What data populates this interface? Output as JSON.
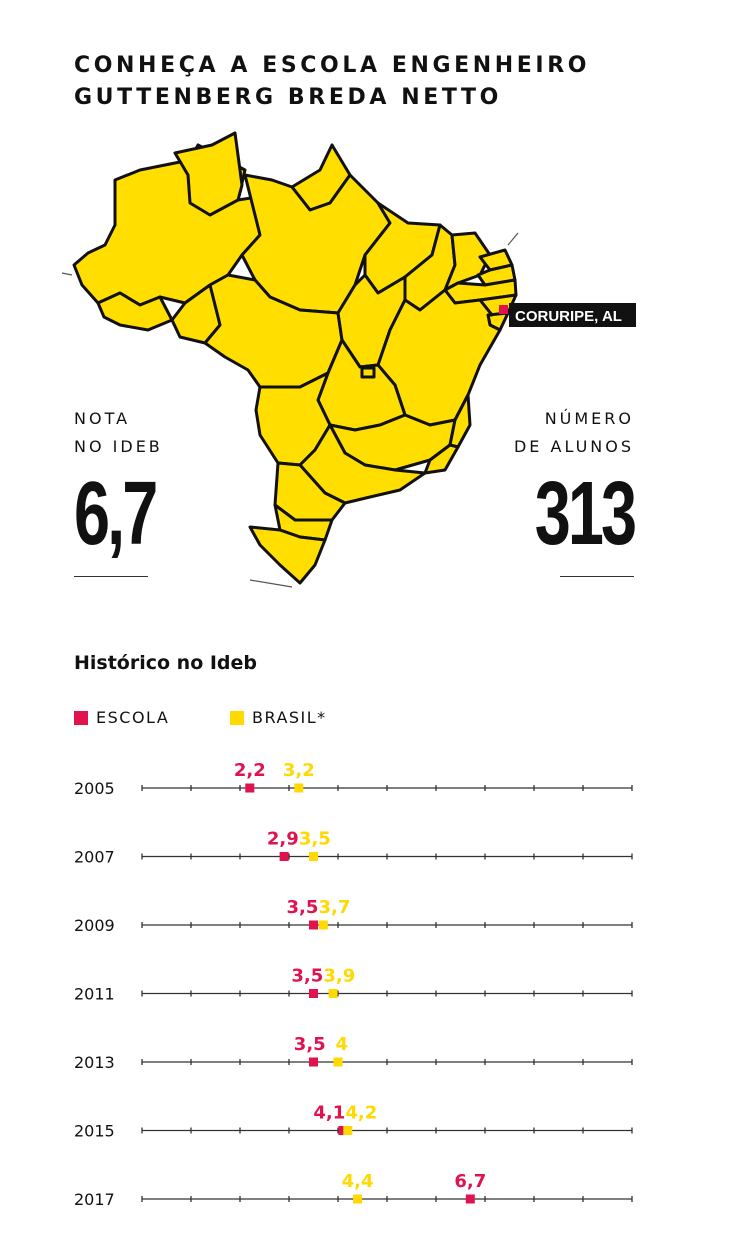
{
  "title": {
    "line1": "CONHEÇA A ESCOLA ENGENHEIRO",
    "line2": "GUTTENBERG BREDA NETTO"
  },
  "map": {
    "location_label": "CORURIPE, AL"
  },
  "stats": {
    "nota_line1": "NOTA",
    "nota_line2": "NO IDEB",
    "nota_value": "6,7",
    "alunos_line1": "NÚMERO",
    "alunos_line2": "DE ALUNOS",
    "alunos_value": "313"
  },
  "history": {
    "title": "Histórico no Ideb",
    "legend_escola": "ESCOLA",
    "legend_brasil": "BRASIL*"
  },
  "colors": {
    "escola": "#e0134f",
    "brasil": "#ffd900",
    "map_fill": "#ffde00",
    "text": "#111111"
  },
  "chart_data": {
    "type": "scatter",
    "title": "Histórico no Ideb",
    "categories": [
      "2005",
      "2007",
      "2009",
      "2011",
      "2013",
      "2015",
      "2017"
    ],
    "xlim": [
      0,
      10
    ],
    "series": [
      {
        "name": "ESCOLA",
        "values": [
          2.2,
          2.9,
          3.5,
          3.5,
          3.5,
          4.1,
          6.7
        ],
        "labels": [
          "2,2",
          "2,9",
          "3,5",
          "3,5",
          "3,5",
          "4,1",
          "6,7"
        ]
      },
      {
        "name": "BRASIL*",
        "values": [
          3.2,
          3.5,
          3.7,
          3.9,
          4,
          4.2,
          4.4
        ],
        "labels": [
          "3,2",
          "3,5",
          "3,7",
          "3,9",
          "4",
          "4,2",
          "4,4"
        ]
      }
    ]
  }
}
